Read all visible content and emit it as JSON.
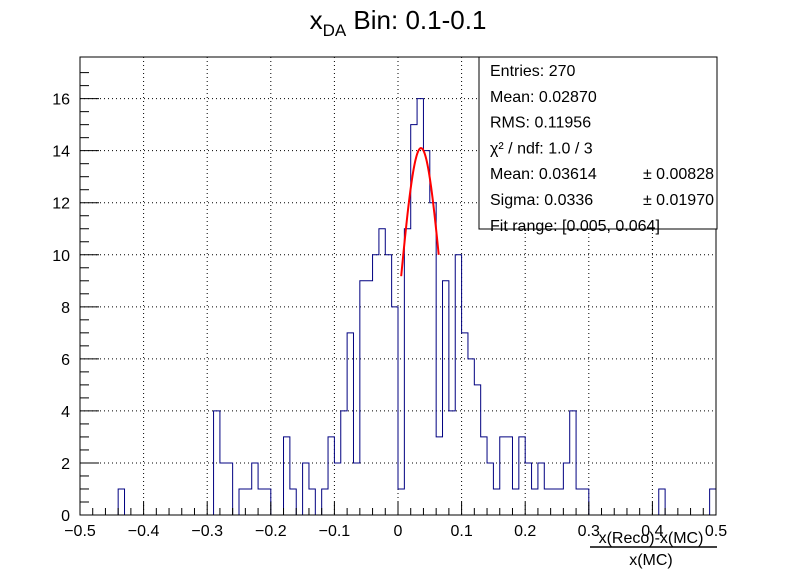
{
  "chart_data": {
    "type": "bar",
    "style": "step-histogram",
    "title": {
      "main": "x",
      "subscript": "DA",
      "rest": " Bin: 0.1-0.1"
    },
    "xlabel": {
      "numerator": "x(Reco)-x(MC)",
      "denominator": "x(MC)"
    },
    "ylabel": "",
    "xlim": [
      -0.5,
      0.5
    ],
    "ylim": [
      0,
      17.6
    ],
    "bin_width": 0.01,
    "grid": true,
    "histogram_color": "#000080",
    "fit_color": "#ff0000",
    "x_ticks": [
      "−0.5",
      "−0.4",
      "−0.3",
      "−0.2",
      "−0.1",
      "0",
      "0.1",
      "0.2",
      "0.3",
      "0.4",
      "0.5"
    ],
    "x_tick_values": [
      -0.5,
      -0.4,
      -0.3,
      -0.2,
      -0.1,
      0,
      0.1,
      0.2,
      0.3,
      0.4,
      0.5
    ],
    "y_ticks": [
      "0",
      "2",
      "4",
      "6",
      "8",
      "10",
      "12",
      "14",
      "16"
    ],
    "y_tick_values": [
      0,
      2,
      4,
      6,
      8,
      10,
      12,
      14,
      16
    ],
    "bins": [
      {
        "x": -0.44,
        "count": 1
      },
      {
        "x": -0.29,
        "count": 4
      },
      {
        "x": -0.28,
        "count": 2
      },
      {
        "x": -0.27,
        "count": 2
      },
      {
        "x": -0.25,
        "count": 1
      },
      {
        "x": -0.24,
        "count": 1
      },
      {
        "x": -0.23,
        "count": 2
      },
      {
        "x": -0.22,
        "count": 1
      },
      {
        "x": -0.21,
        "count": 1
      },
      {
        "x": -0.18,
        "count": 3
      },
      {
        "x": -0.17,
        "count": 1
      },
      {
        "x": -0.15,
        "count": 2
      },
      {
        "x": -0.14,
        "count": 1
      },
      {
        "x": -0.12,
        "count": 1
      },
      {
        "x": -0.11,
        "count": 3
      },
      {
        "x": -0.1,
        "count": 2
      },
      {
        "x": -0.09,
        "count": 4
      },
      {
        "x": -0.08,
        "count": 7
      },
      {
        "x": -0.07,
        "count": 2
      },
      {
        "x": -0.06,
        "count": 9
      },
      {
        "x": -0.05,
        "count": 9
      },
      {
        "x": -0.04,
        "count": 10
      },
      {
        "x": -0.03,
        "count": 11
      },
      {
        "x": -0.02,
        "count": 10
      },
      {
        "x": -0.01,
        "count": 8
      },
      {
        "x": 0.0,
        "count": 1
      },
      {
        "x": 0.01,
        "count": 11
      },
      {
        "x": 0.02,
        "count": 15
      },
      {
        "x": 0.03,
        "count": 16
      },
      {
        "x": 0.04,
        "count": 14
      },
      {
        "x": 0.05,
        "count": 12
      },
      {
        "x": 0.06,
        "count": 3
      },
      {
        "x": 0.07,
        "count": 9
      },
      {
        "x": 0.08,
        "count": 4
      },
      {
        "x": 0.09,
        "count": 10
      },
      {
        "x": 0.1,
        "count": 7
      },
      {
        "x": 0.11,
        "count": 6
      },
      {
        "x": 0.12,
        "count": 5
      },
      {
        "x": 0.13,
        "count": 3
      },
      {
        "x": 0.14,
        "count": 2
      },
      {
        "x": 0.15,
        "count": 1
      },
      {
        "x": 0.16,
        "count": 3
      },
      {
        "x": 0.17,
        "count": 3
      },
      {
        "x": 0.18,
        "count": 1
      },
      {
        "x": 0.19,
        "count": 3
      },
      {
        "x": 0.2,
        "count": 2
      },
      {
        "x": 0.21,
        "count": 1
      },
      {
        "x": 0.22,
        "count": 2
      },
      {
        "x": 0.23,
        "count": 1
      },
      {
        "x": 0.24,
        "count": 1
      },
      {
        "x": 0.25,
        "count": 1
      },
      {
        "x": 0.26,
        "count": 2
      },
      {
        "x": 0.27,
        "count": 4
      },
      {
        "x": 0.28,
        "count": 1
      },
      {
        "x": 0.29,
        "count": 1
      },
      {
        "x": 0.41,
        "count": 1
      },
      {
        "x": 0.49,
        "count": 1
      }
    ],
    "fit": {
      "function": "gaus",
      "constant": 14.1,
      "mean": 0.03614,
      "sigma": 0.0336,
      "range": [
        0.005,
        0.064
      ]
    },
    "stats_box": {
      "position": "top-right",
      "lines": [
        {
          "label": "Entries: 270",
          "error": ""
        },
        {
          "label": "Mean: 0.02870",
          "error": ""
        },
        {
          "label": "RMS: 0.11956",
          "error": ""
        },
        {
          "label": "χ² / ndf: 1.0 / 3",
          "error": ""
        },
        {
          "label": "Mean: 0.03614",
          "error": "± 0.00828"
        },
        {
          "label": "Sigma: 0.0336",
          "error": "± 0.01970"
        },
        {
          "label": "Fit range: [0.005, 0.064]",
          "error": ""
        }
      ]
    }
  }
}
